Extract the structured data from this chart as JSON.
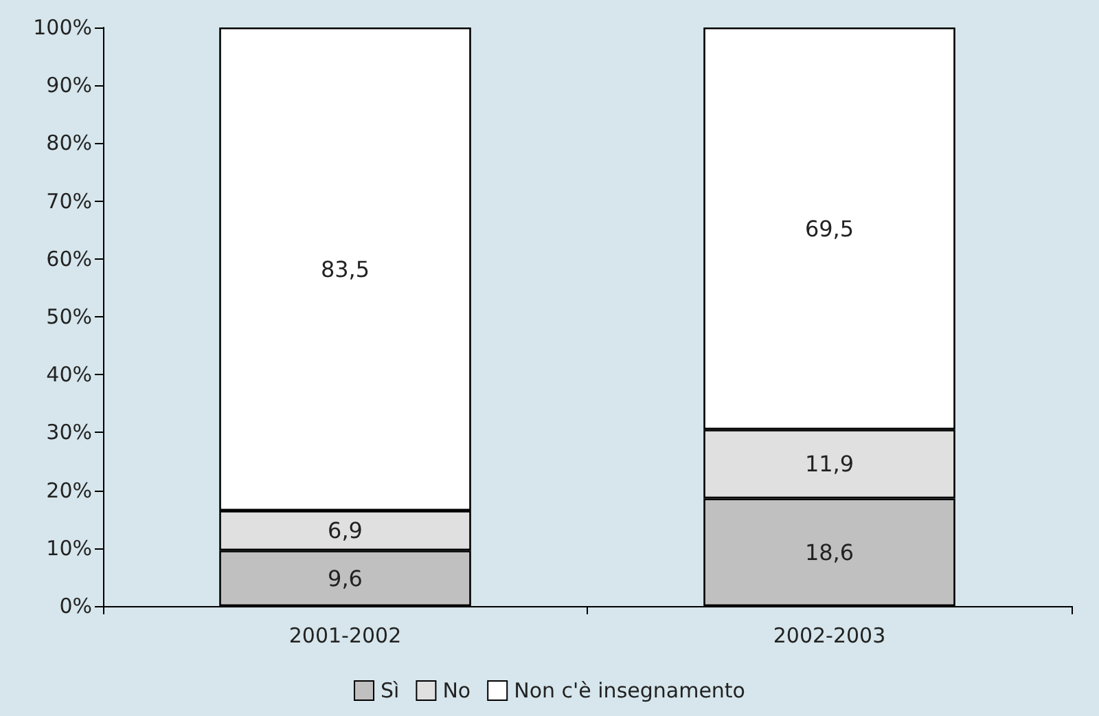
{
  "chart_data": {
    "type": "bar",
    "stacked": true,
    "categories": [
      "2001-2002",
      "2002-2003"
    ],
    "series": [
      {
        "name": "Sì",
        "color": "#c0c0c0",
        "values": [
          9.6,
          18.6
        ],
        "value_labels": [
          "9,6",
          "18,6"
        ]
      },
      {
        "name": "No",
        "color": "#e0e0e0",
        "values": [
          6.9,
          11.9
        ],
        "value_labels": [
          "6,9",
          "11,9"
        ]
      },
      {
        "name": "Non c'è insegnamento",
        "color": "#ffffff",
        "values": [
          83.5,
          69.5
        ],
        "value_labels": [
          "83,5",
          "69,5"
        ]
      }
    ],
    "ylim": [
      0,
      100
    ],
    "yticks": [
      {
        "value": 0,
        "label": "0%"
      },
      {
        "value": 10,
        "label": "10%"
      },
      {
        "value": 20,
        "label": "20%"
      },
      {
        "value": 30,
        "label": "30%"
      },
      {
        "value": 40,
        "label": "40%"
      },
      {
        "value": 50,
        "label": "50%"
      },
      {
        "value": 60,
        "label": "60%"
      },
      {
        "value": 70,
        "label": "70%"
      },
      {
        "value": 80,
        "label": "80%"
      },
      {
        "value": 90,
        "label": "90%"
      },
      {
        "value": 100,
        "label": "100%"
      }
    ],
    "grid": false,
    "legend": "bottom"
  }
}
